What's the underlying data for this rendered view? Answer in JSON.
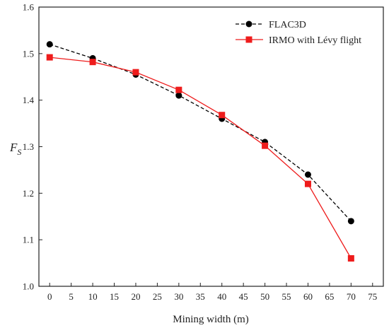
{
  "chart_data": {
    "type": "line",
    "xlabel": "Mining width (m)",
    "ylabel": "F",
    "ylabel_subscript": "S",
    "xlim": [
      -2.5,
      77.5
    ],
    "ylim": [
      1.0,
      1.6
    ],
    "xticks": [
      0,
      5,
      10,
      15,
      20,
      25,
      30,
      35,
      40,
      45,
      50,
      55,
      60,
      65,
      70,
      75
    ],
    "yticks": [
      1.0,
      1.1,
      1.2,
      1.3,
      1.4,
      1.5,
      1.6
    ],
    "ytick_labels": [
      "1.0",
      "1.1",
      "1.2",
      "1.3",
      "1.4",
      "1.5",
      "1.6"
    ],
    "legend_position": "top-right",
    "grid": false,
    "x": [
      0,
      10,
      20,
      30,
      40,
      50,
      60,
      70
    ],
    "series": [
      {
        "name": "FLAC3D",
        "values": [
          1.52,
          1.49,
          1.455,
          1.41,
          1.36,
          1.31,
          1.24,
          1.14
        ],
        "color": "#000000",
        "line_style": "dashed",
        "marker": "circle"
      },
      {
        "name": "IRMO with Lévy flight",
        "values": [
          1.492,
          1.482,
          1.46,
          1.422,
          1.368,
          1.302,
          1.22,
          1.06
        ],
        "color": "#ee1c1c",
        "line_style": "solid",
        "marker": "square"
      }
    ]
  }
}
